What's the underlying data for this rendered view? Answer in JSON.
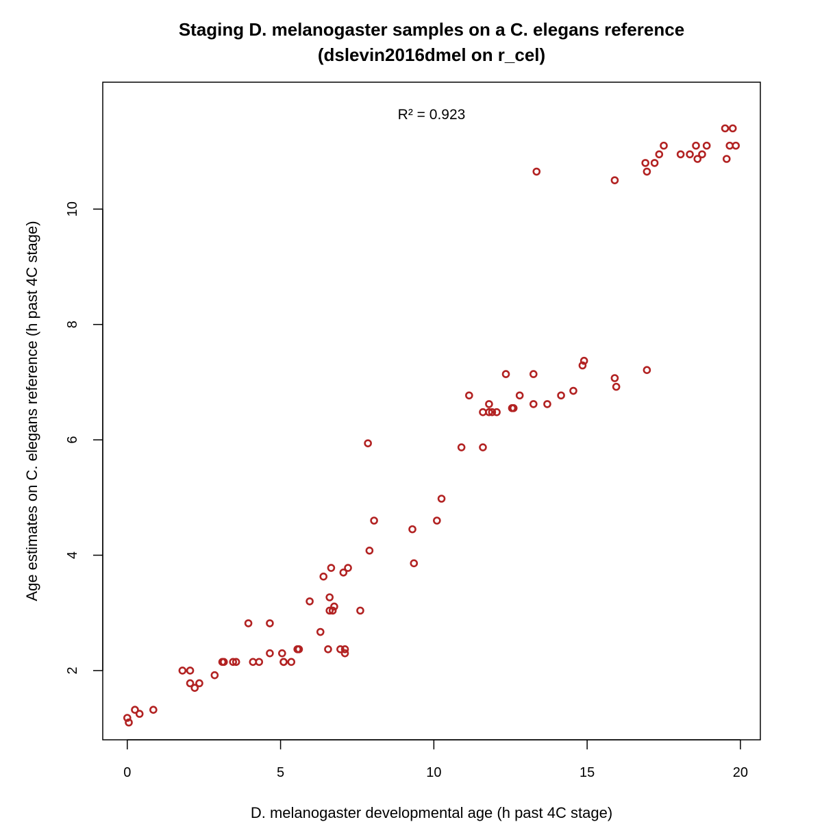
{
  "chart_data": {
    "type": "scatter",
    "title": "Staging D. melanogaster samples on a C. elegans reference",
    "subtitle": "(dslevin2016dmel on r_cel)",
    "xlabel": "D. melanogaster developmental age (h past 4C stage)",
    "ylabel": "Age estimates on C. elegans reference (h past 4C stage)",
    "annotation": "R² = 0.923",
    "xlim": [
      -0.8,
      20.65
    ],
    "ylim": [
      0.8,
      12.2
    ],
    "xticks": [
      0,
      5,
      10,
      15,
      20
    ],
    "yticks": [
      2,
      4,
      6,
      8,
      10
    ],
    "grid": false,
    "point_color": "#b22222",
    "x": [
      0.0,
      0.05,
      0.25,
      0.4,
      0.85,
      1.8,
      2.05,
      2.05,
      2.2,
      2.35,
      2.85,
      3.1,
      3.15,
      3.45,
      3.55,
      3.95,
      4.1,
      4.3,
      4.65,
      4.65,
      5.05,
      5.1,
      5.1,
      5.35,
      5.55,
      5.6,
      5.95,
      6.3,
      6.4,
      6.55,
      6.6,
      6.6,
      6.65,
      6.7,
      6.75,
      6.95,
      7.05,
      7.1,
      7.1,
      7.2,
      7.6,
      7.85,
      7.9,
      8.05,
      9.3,
      9.35,
      10.1,
      10.25,
      10.9,
      11.15,
      11.6,
      11.6,
      11.8,
      11.8,
      11.9,
      12.05,
      12.35,
      12.55,
      12.6,
      12.8,
      13.25,
      13.25,
      13.35,
      13.7,
      14.15,
      14.55,
      14.85,
      14.9,
      15.9,
      15.9,
      15.95,
      16.9,
      16.95,
      16.95,
      17.2,
      17.35,
      17.5,
      18.05,
      18.35,
      18.55,
      18.6,
      18.75,
      18.9,
      19.5,
      19.55,
      19.65,
      19.75,
      19.85
    ],
    "y": [
      1.18,
      1.1,
      1.32,
      1.25,
      1.32,
      2.0,
      2.0,
      1.78,
      1.7,
      1.78,
      1.92,
      2.15,
      2.15,
      2.15,
      2.15,
      2.82,
      2.15,
      2.15,
      2.82,
      2.3,
      2.3,
      2.15,
      2.15,
      2.15,
      2.37,
      2.37,
      3.2,
      2.67,
      3.63,
      2.37,
      3.27,
      3.04,
      3.78,
      3.04,
      3.11,
      2.37,
      3.7,
      2.3,
      2.37,
      3.78,
      3.04,
      5.94,
      4.08,
      4.6,
      4.45,
      3.86,
      4.6,
      4.98,
      5.87,
      6.77,
      6.48,
      5.87,
      6.62,
      6.48,
      6.48,
      6.48,
      7.14,
      6.55,
      6.55,
      6.77,
      7.14,
      6.62,
      10.65,
      6.62,
      6.77,
      6.85,
      7.29,
      7.37,
      7.07,
      10.5,
      6.92,
      10.8,
      10.65,
      7.21,
      10.8,
      10.95,
      11.1,
      10.95,
      10.95,
      11.1,
      10.87,
      10.95,
      11.1,
      11.4,
      10.87,
      11.1,
      11.4,
      11.1
    ]
  }
}
